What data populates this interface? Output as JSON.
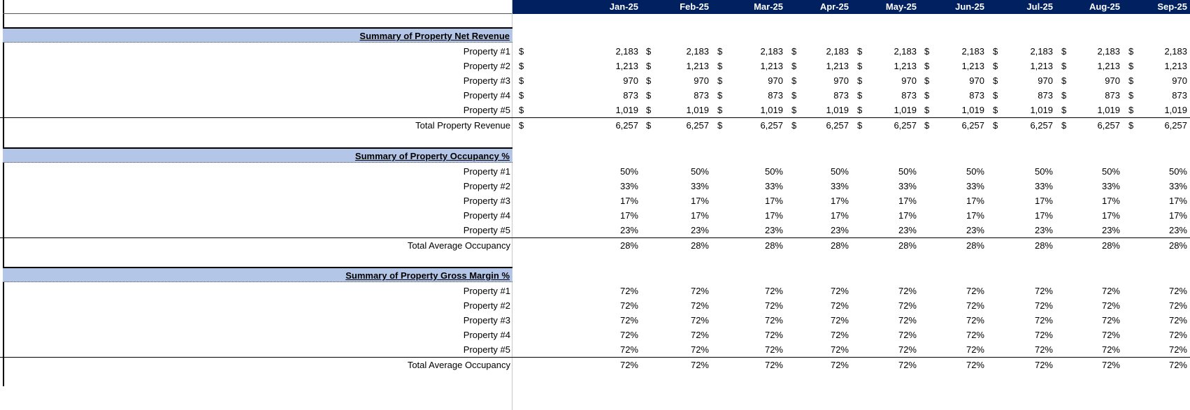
{
  "header": {
    "months": [
      "Jan-25",
      "Feb-25",
      "Mar-25",
      "Apr-25",
      "May-25",
      "Jun-25",
      "Jul-25",
      "Aug-25",
      "Sep-25"
    ]
  },
  "sections": [
    {
      "title": "Summary of Property Net Revenue",
      "currency": "$",
      "rows": [
        {
          "label": "Property #1",
          "values": [
            "2,183",
            "2,183",
            "2,183",
            "2,183",
            "2,183",
            "2,183",
            "2,183",
            "2,183",
            "2,183"
          ]
        },
        {
          "label": "Property #2",
          "values": [
            "1,213",
            "1,213",
            "1,213",
            "1,213",
            "1,213",
            "1,213",
            "1,213",
            "1,213",
            "1,213"
          ]
        },
        {
          "label": "Property #3",
          "values": [
            "970",
            "970",
            "970",
            "970",
            "970",
            "970",
            "970",
            "970",
            "970"
          ]
        },
        {
          "label": "Property #4",
          "values": [
            "873",
            "873",
            "873",
            "873",
            "873",
            "873",
            "873",
            "873",
            "873"
          ]
        },
        {
          "label": "Property #5",
          "values": [
            "1,019",
            "1,019",
            "1,019",
            "1,019",
            "1,019",
            "1,019",
            "1,019",
            "1,019",
            "1,019"
          ]
        }
      ],
      "total": {
        "label": "Total Property Revenue",
        "values": [
          "6,257",
          "6,257",
          "6,257",
          "6,257",
          "6,257",
          "6,257",
          "6,257",
          "6,257",
          "6,257"
        ]
      }
    },
    {
      "title": "Summary of Property Occupancy %",
      "currency": "",
      "rows": [
        {
          "label": "Property #1",
          "values": [
            "50%",
            "50%",
            "50%",
            "50%",
            "50%",
            "50%",
            "50%",
            "50%",
            "50%"
          ]
        },
        {
          "label": "Property #2",
          "values": [
            "33%",
            "33%",
            "33%",
            "33%",
            "33%",
            "33%",
            "33%",
            "33%",
            "33%"
          ]
        },
        {
          "label": "Property #3",
          "values": [
            "17%",
            "17%",
            "17%",
            "17%",
            "17%",
            "17%",
            "17%",
            "17%",
            "17%"
          ]
        },
        {
          "label": "Property #4",
          "values": [
            "17%",
            "17%",
            "17%",
            "17%",
            "17%",
            "17%",
            "17%",
            "17%",
            "17%"
          ]
        },
        {
          "label": "Property #5",
          "values": [
            "23%",
            "23%",
            "23%",
            "23%",
            "23%",
            "23%",
            "23%",
            "23%",
            "23%"
          ]
        }
      ],
      "total": {
        "label": "Total Average Occupancy",
        "values": [
          "28%",
          "28%",
          "28%",
          "28%",
          "28%",
          "28%",
          "28%",
          "28%",
          "28%"
        ]
      }
    },
    {
      "title": "Summary of Property Gross Margin %",
      "currency": "",
      "rows": [
        {
          "label": "Property #1",
          "values": [
            "72%",
            "72%",
            "72%",
            "72%",
            "72%",
            "72%",
            "72%",
            "72%",
            "72%"
          ]
        },
        {
          "label": "Property #2",
          "values": [
            "72%",
            "72%",
            "72%",
            "72%",
            "72%",
            "72%",
            "72%",
            "72%",
            "72%"
          ]
        },
        {
          "label": "Property #3",
          "values": [
            "72%",
            "72%",
            "72%",
            "72%",
            "72%",
            "72%",
            "72%",
            "72%",
            "72%"
          ]
        },
        {
          "label": "Property #4",
          "values": [
            "72%",
            "72%",
            "72%",
            "72%",
            "72%",
            "72%",
            "72%",
            "72%",
            "72%"
          ]
        },
        {
          "label": "Property #5",
          "values": [
            "72%",
            "72%",
            "72%",
            "72%",
            "72%",
            "72%",
            "72%",
            "72%",
            "72%"
          ]
        }
      ],
      "total": {
        "label": "Total Average Occupancy",
        "values": [
          "72%",
          "72%",
          "72%",
          "72%",
          "72%",
          "72%",
          "72%",
          "72%",
          "72%"
        ]
      }
    }
  ],
  "colors": {
    "header_bg": "#002060",
    "section_bg": "#b4c6e7"
  }
}
